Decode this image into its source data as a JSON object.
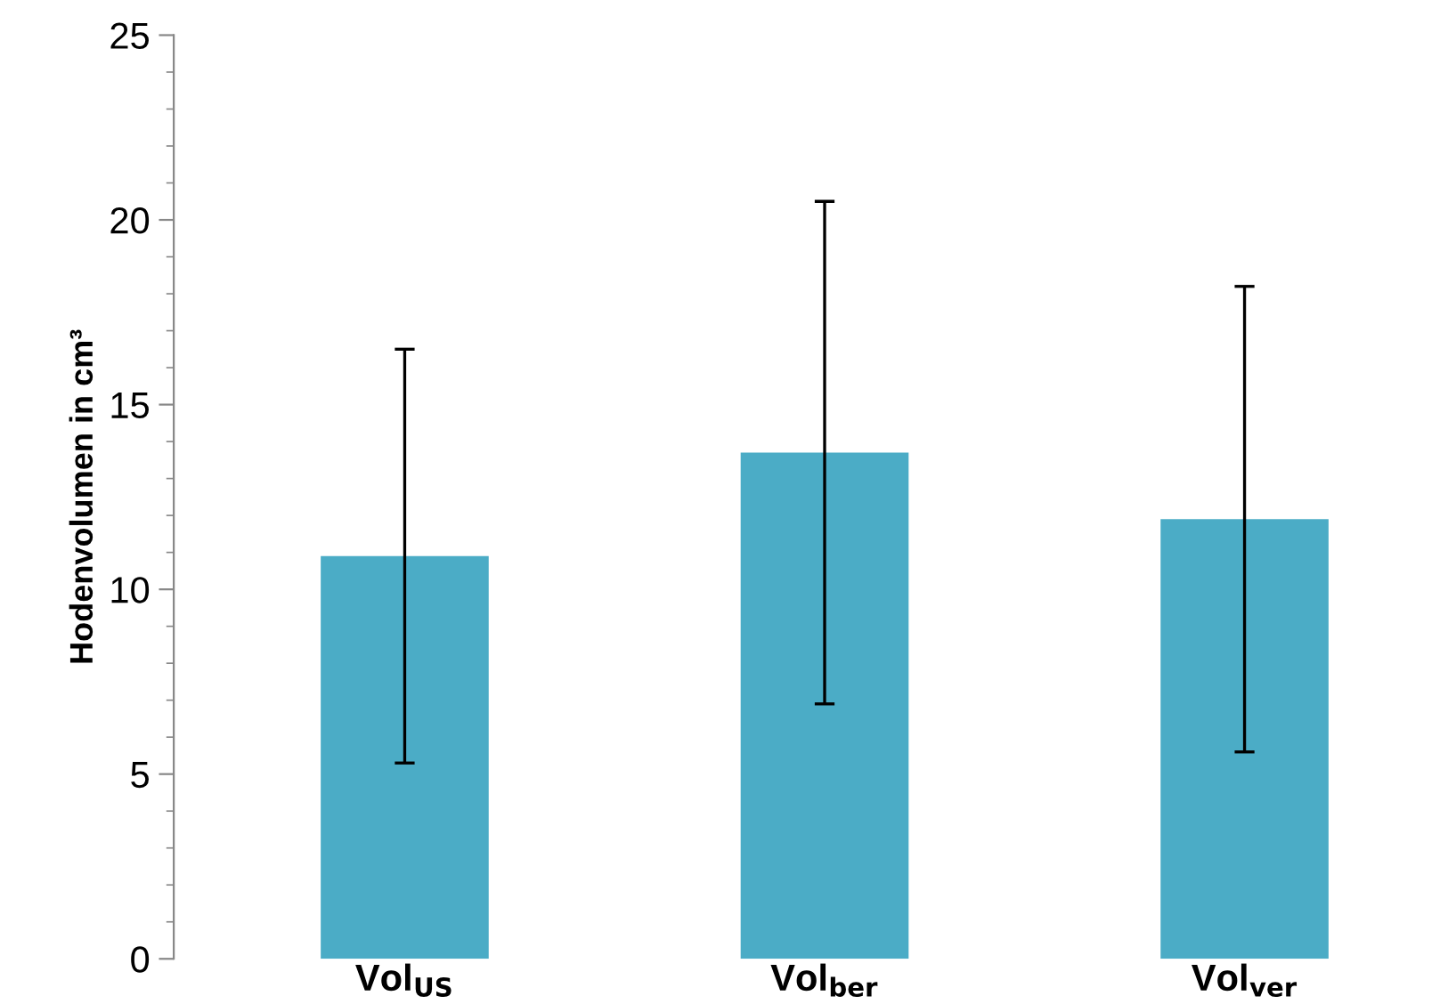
{
  "chart_data": {
    "type": "bar",
    "ylabel": "Hodenvolumen in cm³",
    "categories": [
      "Vol$_{US}$",
      "Vol$_{ber}$",
      "Vol$_{ver}$"
    ],
    "values": [
      10.9,
      13.7,
      11.9
    ],
    "errors": [
      5.6,
      6.8,
      6.3
    ],
    "color": "#4bacc6",
    "ylim": [
      0,
      25
    ],
    "yticks": [
      0,
      5,
      10,
      15,
      20,
      25
    ],
    "grid": false,
    "legend": false
  }
}
